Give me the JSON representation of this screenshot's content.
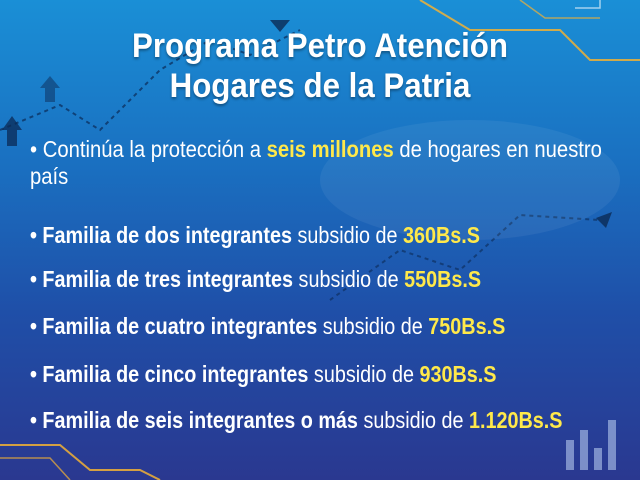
{
  "title": {
    "line1": "Programa Petro Atención",
    "line2": "Hogares de la Patria"
  },
  "intro": {
    "before": "• Continúa la protección a ",
    "highlight": "seis millones",
    "after": " de hogares en nuestro país"
  },
  "items": [
    {
      "bullet": "• ",
      "family": "Familia de dos integrantes",
      "mid": " subsidio de ",
      "amount": "360Bs.S"
    },
    {
      "bullet": "• ",
      "family": "Familia de tres integrantes",
      "mid": " subsidio de ",
      "amount": "550Bs.S"
    },
    {
      "bullet": "• ",
      "family": "Familia de cuatro integrantes",
      "mid": " subsidio de ",
      "amount": "750Bs.S"
    },
    {
      "bullet": "• ",
      "family": "Familia de cinco integrantes",
      "mid": " subsidio de ",
      "amount": "930Bs.S"
    },
    {
      "bullet": "• ",
      "family": "Familia de seis integrantes o más",
      "mid": " subsidio de ",
      "amount": "1.120Bs.S"
    }
  ],
  "colors": {
    "background_top": "#1a8fd6",
    "background_bottom": "#2a3890",
    "highlight": "#ffe94a",
    "text": "#ffffff",
    "accent_lines": "#f2b134"
  }
}
